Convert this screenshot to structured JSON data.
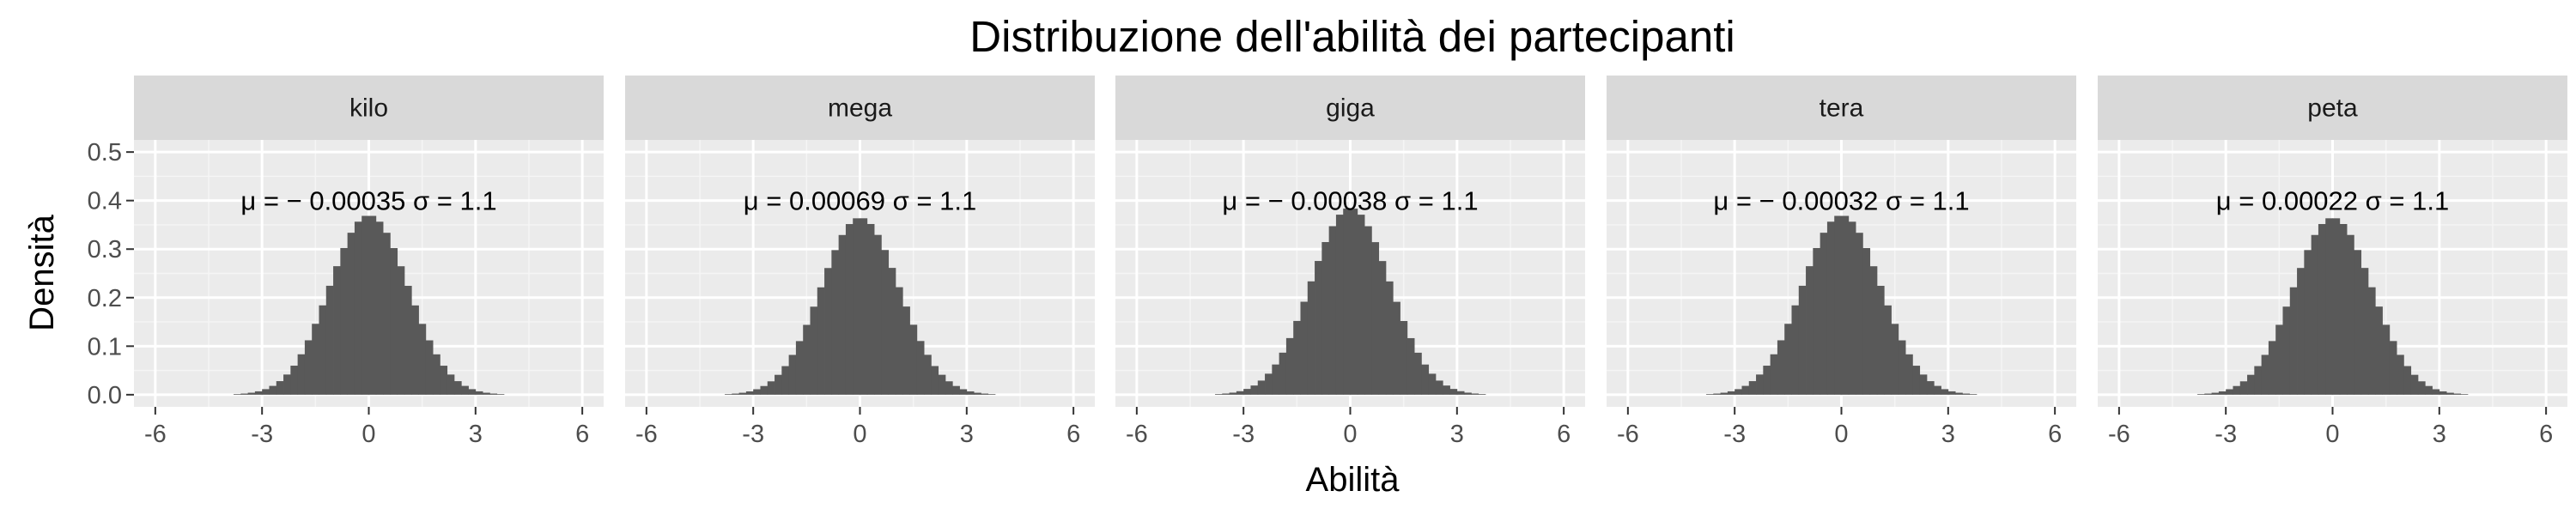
{
  "chart_data": {
    "type": "bar",
    "subtype": "faceted-histogram",
    "title": "Distribuzione dell'abilità dei partecipanti",
    "xlabel": "Abilità",
    "ylabel": "Densità",
    "xlim": [
      -6.6,
      6.6
    ],
    "ylim": [
      -0.025,
      0.525
    ],
    "x_ticks": [
      -6,
      -3,
      0,
      3,
      6
    ],
    "x_tick_labels": [
      "-6",
      "-3",
      "0",
      "3",
      "6"
    ],
    "y_ticks": [
      0.0,
      0.1,
      0.2,
      0.3,
      0.4,
      0.5
    ],
    "y_tick_labels": [
      "0.0",
      "0.1",
      "0.2",
      "0.3",
      "0.4",
      "0.5"
    ],
    "grid": true,
    "bar_color": "#595959",
    "panel_background": "#ebebeb",
    "strip_background": "#d9d9d9",
    "bin_width": 0.2,
    "panels": [
      {
        "name": "kilo",
        "mean": -0.00035,
        "sd": 1.1,
        "annotation": "μ = − 0.00035 σ = 1.1",
        "peak": 0.37
      },
      {
        "name": "mega",
        "mean": 0.00069,
        "sd": 1.1,
        "annotation": "μ = 0.00069 σ = 1.1",
        "peak": 0.365
      },
      {
        "name": "giga",
        "mean": -0.00038,
        "sd": 1.1,
        "annotation": "μ = − 0.00038 σ = 1.1",
        "peak": 0.385
      },
      {
        "name": "tera",
        "mean": -0.00032,
        "sd": 1.1,
        "annotation": "μ = − 0.00032 σ = 1.1",
        "peak": 0.37
      },
      {
        "name": "peta",
        "mean": 0.00022,
        "sd": 1.1,
        "annotation": "μ = 0.00022 σ = 1.1",
        "peak": 0.365
      }
    ]
  }
}
